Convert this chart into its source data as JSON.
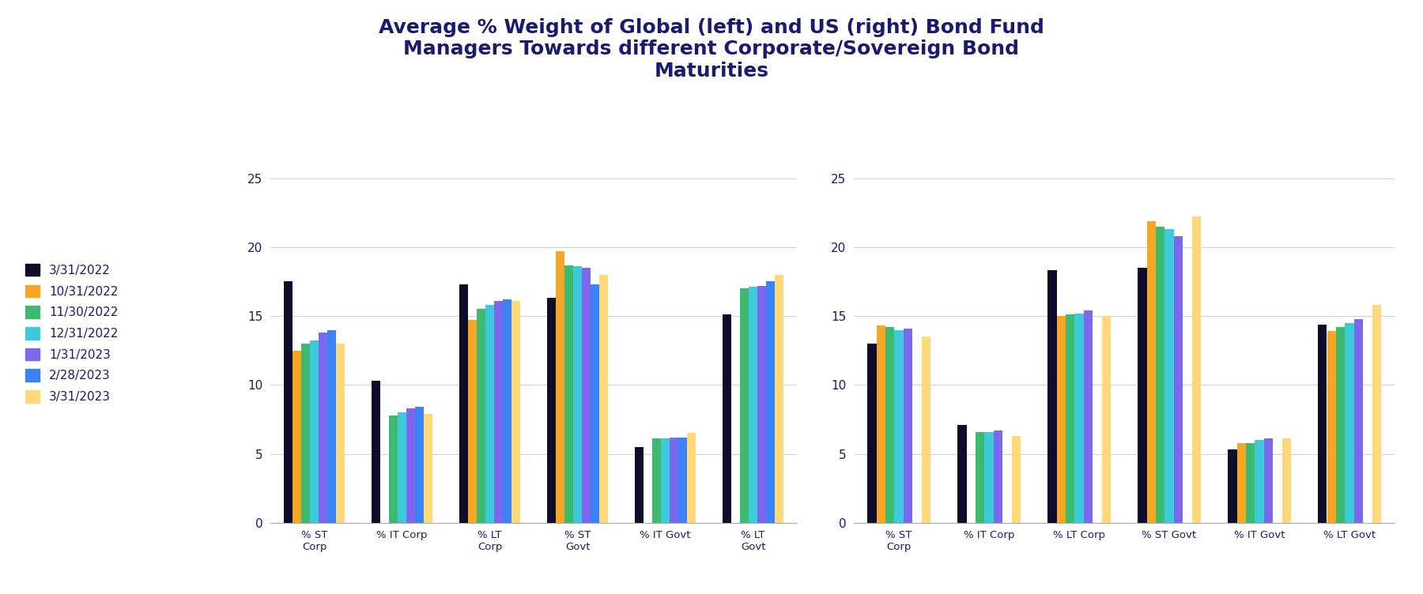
{
  "title": "Average % Weight of Global (left) and US (right) Bond Fund\nManagers Towards different Corporate/Sovereign Bond\nMaturities",
  "title_color": "#1a1a6e",
  "bar_colors": [
    "#0d0d2b",
    "#f5a623",
    "#3dba6f",
    "#3dcbdc",
    "#7b68ee",
    "#3b82f6",
    "#ffd87a"
  ],
  "legend_labels": [
    "3/31/2022",
    "10/31/2022",
    "11/30/2022",
    "12/31/2022",
    "1/31/2023",
    "2/28/2023",
    "3/31/2023"
  ],
  "left_categories": [
    "% ST\nCorp",
    "% IT Corp",
    "% LT\nCorp",
    "% ST\nGovt",
    "% IT Govt",
    "% LT\nGovt"
  ],
  "right_categories": [
    "% ST\nCorp",
    "% IT Corp",
    "% LT Corp",
    "% ST Govt",
    "% IT Govt",
    "% LT Govt"
  ],
  "left_data": [
    [
      17.5,
      10.3,
      17.3,
      16.3,
      5.5,
      15.1
    ],
    [
      12.5,
      null,
      14.7,
      19.7,
      null,
      null
    ],
    [
      13.0,
      7.8,
      15.5,
      18.7,
      6.1,
      17.0
    ],
    [
      13.2,
      8.0,
      15.8,
      18.6,
      6.1,
      17.1
    ],
    [
      13.8,
      8.3,
      16.1,
      18.5,
      6.2,
      17.2
    ],
    [
      14.0,
      8.4,
      16.2,
      17.3,
      6.2,
      17.5
    ],
    [
      13.0,
      7.9,
      16.1,
      18.0,
      6.5,
      18.0
    ]
  ],
  "right_data": [
    [
      13.0,
      7.1,
      18.3,
      18.5,
      5.3,
      14.4
    ],
    [
      14.3,
      null,
      15.0,
      21.9,
      5.8,
      13.9
    ],
    [
      14.2,
      6.6,
      15.1,
      21.5,
      5.8,
      14.2
    ],
    [
      14.0,
      6.6,
      15.2,
      21.3,
      6.0,
      14.5
    ],
    [
      14.1,
      6.7,
      15.4,
      20.8,
      6.1,
      14.8
    ],
    [
      null,
      null,
      null,
      null,
      null,
      null
    ],
    [
      13.5,
      6.3,
      15.0,
      22.2,
      6.1,
      15.8
    ]
  ],
  "ylim": [
    0,
    25
  ],
  "yticks": [
    0,
    5,
    10,
    15,
    20,
    25
  ],
  "background_color": "#ffffff",
  "grid_color": "#d0d0d0"
}
